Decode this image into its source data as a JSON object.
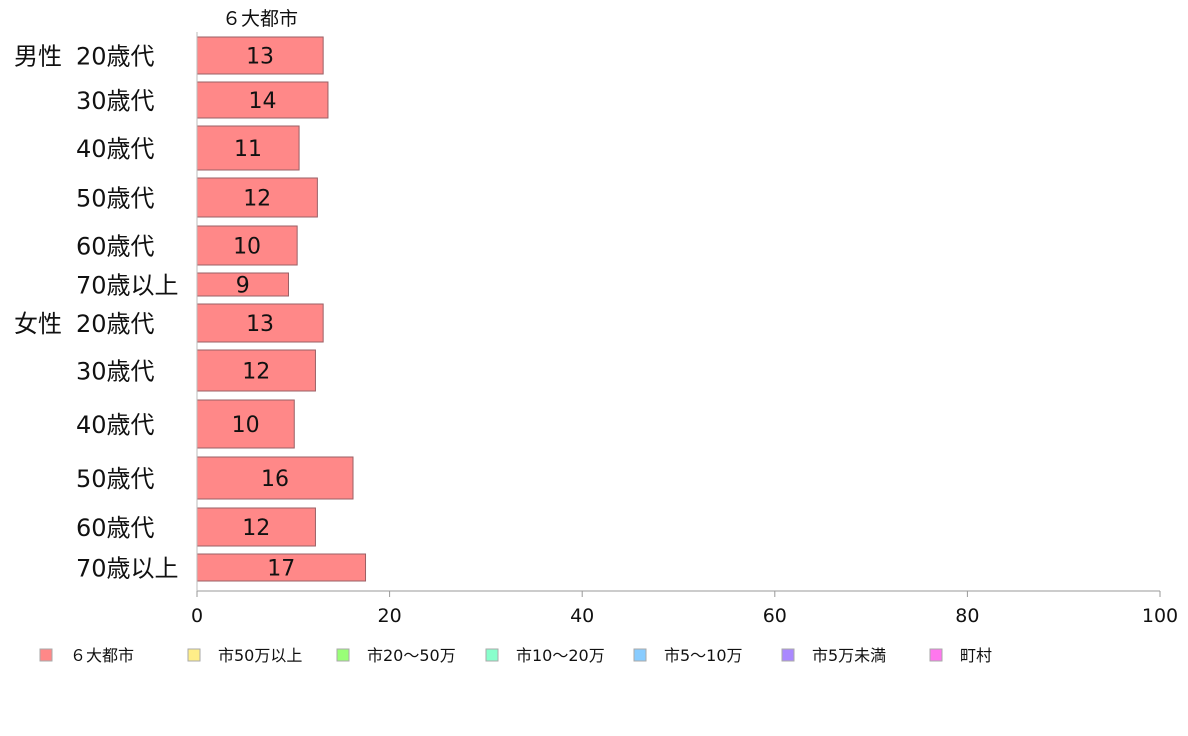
{
  "chart_data": {
    "type": "bar",
    "orientation": "horizontal",
    "stacked": true,
    "column_header": "６大都市",
    "groups": [
      "男性",
      "女性"
    ],
    "categories": [
      "20歳代",
      "30歳代",
      "40歳代",
      "50歳代",
      "60歳代",
      "70歳以上",
      "20歳代",
      "30歳代",
      "40歳代",
      "50歳代",
      "60歳代",
      "70歳以上"
    ],
    "series": [
      {
        "name": "６大都市",
        "color": "#ff8888",
        "values": [
          13,
          14,
          11,
          12,
          10,
          9,
          13,
          12,
          10,
          16,
          12,
          17
        ],
        "bar_values": [
          13.1,
          13.6,
          10.6,
          12.5,
          10.4,
          9.5,
          13.1,
          12.3,
          10.1,
          16.2,
          12.3,
          17.5
        ]
      },
      {
        "name": "市50万以上",
        "color": "#ffee88",
        "values": [
          0,
          0,
          0,
          0,
          0,
          0,
          0,
          0,
          0,
          0,
          0,
          0
        ]
      },
      {
        "name": "市20～50万",
        "color": "#99ff77",
        "values": [
          0,
          0,
          0,
          0,
          0,
          0,
          0,
          0,
          0,
          0,
          0,
          0
        ]
      },
      {
        "name": "市10～20万",
        "color": "#88ffcc",
        "values": [
          0,
          0,
          0,
          0,
          0,
          0,
          0,
          0,
          0,
          0,
          0,
          0
        ]
      },
      {
        "name": "市5～10万",
        "color": "#88ccff",
        "values": [
          0,
          0,
          0,
          0,
          0,
          0,
          0,
          0,
          0,
          0,
          0,
          0
        ]
      },
      {
        "name": "市5万未満",
        "color": "#aa88ff",
        "values": [
          0,
          0,
          0,
          0,
          0,
          0,
          0,
          0,
          0,
          0,
          0,
          0
        ]
      },
      {
        "name": "町村",
        "color": "#ff77ee",
        "values": [
          0,
          0,
          0,
          0,
          0,
          0,
          0,
          0,
          0,
          0,
          0,
          0
        ]
      }
    ],
    "xlim": [
      0,
      100
    ],
    "xticks": [
      0,
      20,
      40,
      60,
      80,
      100
    ],
    "legend_position": "bottom",
    "grid": false
  }
}
